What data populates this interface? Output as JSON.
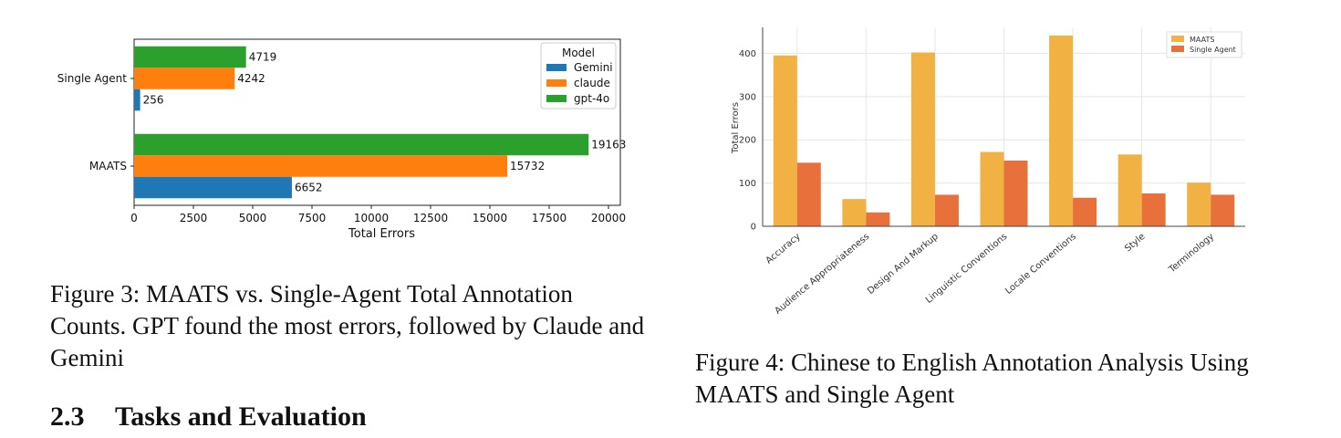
{
  "figure3": {
    "caption": "Figure 3: MAATS vs. Single-Agent Total Annotation Counts. GPT found the most errors, followed by Claude and Gemini",
    "chart_data": {
      "type": "bar",
      "orientation": "horizontal",
      "categories": [
        "Single Agent",
        "MAATS"
      ],
      "series": [
        {
          "name": "Gemini",
          "values": [
            256,
            6652
          ],
          "color": "#1f77b4"
        },
        {
          "name": "claude",
          "values": [
            4242,
            15732
          ],
          "color": "#ff7f0e"
        },
        {
          "name": "gpt-4o",
          "values": [
            4719,
            19163
          ],
          "color": "#2ca02c"
        }
      ],
      "xlabel": "Total Errors",
      "xlim": [
        0,
        20500
      ],
      "xticks": [
        "0",
        "2500",
        "5000",
        "7500",
        "10000",
        "12500",
        "15000",
        "17500",
        "20000"
      ],
      "legend_title": "Model",
      "legend_position": "top-right",
      "grid": false
    }
  },
  "figure4": {
    "caption": "Figure 4: Chinese to English Annotation Analysis Using MAATS and Single Agent",
    "chart_data": {
      "type": "bar",
      "categories": [
        "Accuracy",
        "Audience Appropriateness",
        "Design And Markup",
        "Linguistic Conventions",
        "Locale Conventions",
        "Style",
        "Terminology"
      ],
      "series": [
        {
          "name": "MAATS",
          "values": [
            395,
            63,
            402,
            172,
            441,
            166,
            101
          ],
          "color": "#f2b143"
        },
        {
          "name": "Single Agent",
          "values": [
            147,
            32,
            73,
            152,
            66,
            76,
            73
          ],
          "color": "#e8703a"
        }
      ],
      "ylabel": "Total Errors",
      "ylim": [
        0,
        460
      ],
      "yticks": [
        "0",
        "100",
        "200",
        "300",
        "400"
      ],
      "legend_position": "top-right",
      "grid": true
    }
  },
  "section": {
    "number": "2.3",
    "title": "Tasks and Evaluation"
  }
}
